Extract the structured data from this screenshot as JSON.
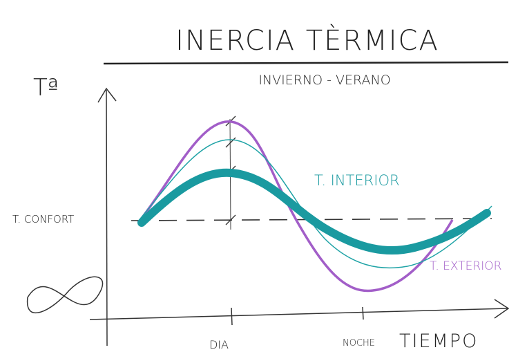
{
  "header": {
    "title": "INERCIA TÈRMICA",
    "subtitle": "INVIERNO - VERANO"
  },
  "axes": {
    "y_label": "Tª",
    "x_label": "TIEMPO",
    "x_marks": [
      "DIA",
      "NOCHE"
    ]
  },
  "labels": {
    "comfort": "T. CONFORT",
    "interior": "T. INTERIOR",
    "exterior": "T. EXTERIOR"
  }
}
